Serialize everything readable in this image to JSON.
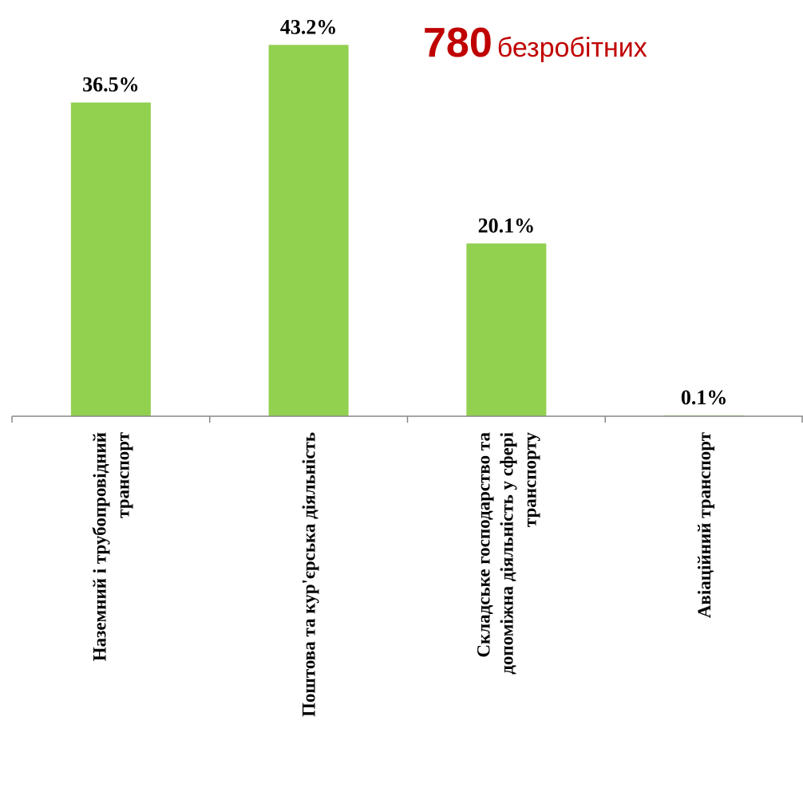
{
  "chart_data": {
    "type": "bar",
    "categories": [
      "Наземний і трубопровідний транспорт",
      "Поштова та кур'єрська діяльність",
      "Складське господарство та допоміжна діяльність у сфері транспорту",
      "Авіаційний транспорт"
    ],
    "category_lines": [
      [
        "Наземний і трубопровідний",
        "транспорт"
      ],
      [
        "Поштова та кур'єрська діяльність"
      ],
      [
        "Складське господарство та",
        "допоміжна діяльність у сфері",
        "транспорту"
      ],
      [
        "Авіаційний транспорт"
      ]
    ],
    "values": [
      36.5,
      43.2,
      20.1,
      0.1
    ],
    "data_labels": [
      "36.5%",
      "43.2%",
      "20.1%",
      "0.1%"
    ],
    "ylim": [
      0,
      45
    ],
    "title": "",
    "xlabel": "",
    "ylabel": "",
    "grid": false,
    "legend": "none",
    "bar_color": "#92d050"
  },
  "annotation": {
    "count": "780",
    "word": "безробітних",
    "color": "#c00000"
  }
}
